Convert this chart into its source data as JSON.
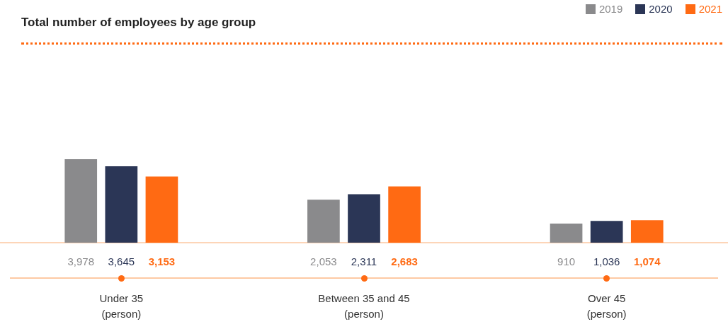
{
  "chart_data": {
    "type": "bar",
    "title": "Total number of employees by age group",
    "categories": [
      "Under 35\n(person)",
      "Between 35 and 45\n(person)",
      "Over 45\n(person)"
    ],
    "series": [
      {
        "name": "2019",
        "color": "#8a8a8c",
        "values": [
          3978,
          2053,
          910
        ],
        "value_labels": [
          "3,978",
          "2,053",
          "910"
        ]
      },
      {
        "name": "2020",
        "color": "#2b3656",
        "values": [
          3645,
          2311,
          1036
        ],
        "value_labels": [
          "3,645",
          "2,311",
          "1,036"
        ]
      },
      {
        "name": "2021",
        "color": "#ff6a13",
        "values": [
          3153,
          2683,
          1074
        ],
        "value_labels": [
          "3,153",
          "2,683",
          "1,074"
        ]
      }
    ],
    "legend": "top right",
    "grid": false
  }
}
